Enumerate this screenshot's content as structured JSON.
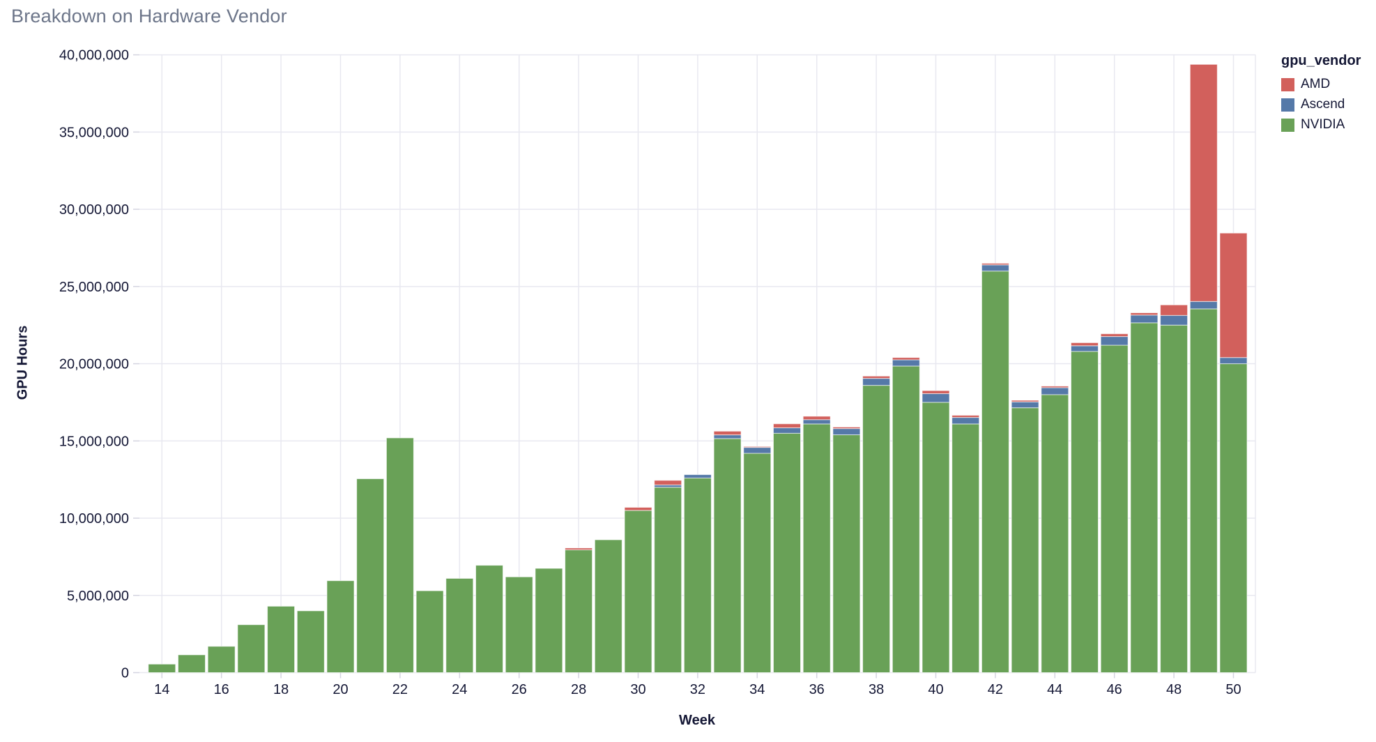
{
  "page": {
    "background": "#ffffff",
    "title": "Breakdown on Hardware Vendor",
    "title_color": "#6c7589"
  },
  "chart_data": {
    "type": "bar",
    "stacked": true,
    "title": "Breakdown on Hardware Vendor",
    "xlabel": "Week",
    "ylabel": "GPU Hours",
    "x": [
      14,
      15,
      16,
      17,
      18,
      19,
      20,
      21,
      22,
      23,
      24,
      25,
      26,
      27,
      28,
      29,
      30,
      31,
      32,
      33,
      34,
      35,
      36,
      37,
      38,
      39,
      40,
      41,
      42,
      43,
      44,
      45,
      46,
      47,
      48,
      49,
      50
    ],
    "series": [
      {
        "name": "NVIDIA",
        "color": "#69a157",
        "values": [
          550000,
          1150000,
          1700000,
          3100000,
          4300000,
          4000000,
          5950000,
          12550000,
          15200000,
          5300000,
          6100000,
          6950000,
          6200000,
          6750000,
          7950000,
          8600000,
          10500000,
          12000000,
          12600000,
          15150000,
          14200000,
          15500000,
          16100000,
          15400000,
          18600000,
          19850000,
          17500000,
          16100000,
          26000000,
          17150000,
          18000000,
          20800000,
          21200000,
          22650000,
          22500000,
          23550000,
          20000000
        ]
      },
      {
        "name": "Ascend",
        "color": "#5579a8",
        "values": [
          0,
          0,
          0,
          0,
          0,
          0,
          0,
          0,
          0,
          0,
          0,
          0,
          0,
          0,
          0,
          0,
          0,
          150000,
          220000,
          240000,
          380000,
          350000,
          280000,
          400000,
          450000,
          400000,
          560000,
          420000,
          400000,
          380000,
          450000,
          360000,
          560000,
          500000,
          630000,
          480000,
          400000
        ]
      },
      {
        "name": "AMD",
        "color": "#d2605c",
        "values": [
          0,
          0,
          0,
          0,
          0,
          0,
          0,
          0,
          0,
          0,
          0,
          0,
          0,
          0,
          120000,
          0,
          200000,
          300000,
          0,
          240000,
          60000,
          260000,
          220000,
          100000,
          150000,
          150000,
          200000,
          140000,
          100000,
          100000,
          100000,
          200000,
          180000,
          150000,
          680000,
          15350000,
          8060000
        ]
      }
    ],
    "stack_order_bottom_to_top": [
      "NVIDIA",
      "Ascend",
      "AMD"
    ],
    "ylim": [
      0,
      40000000
    ],
    "grid": true,
    "y_ticks": {
      "values": [
        0,
        5000000,
        10000000,
        15000000,
        20000000,
        25000000,
        30000000,
        35000000,
        40000000
      ],
      "labels": [
        "0",
        "5,000,000",
        "10,000,000",
        "15,000,000",
        "20,000,000",
        "25,000,000",
        "30,000,000",
        "35,000,000",
        "40,000,000"
      ]
    },
    "x_ticks": {
      "values": [
        14,
        16,
        18,
        20,
        22,
        24,
        26,
        28,
        30,
        32,
        34,
        36,
        38,
        40,
        42,
        44,
        46,
        48,
        50
      ],
      "labels": [
        "14",
        "16",
        "18",
        "20",
        "22",
        "24",
        "26",
        "28",
        "30",
        "32",
        "34",
        "36",
        "38",
        "40",
        "42",
        "44",
        "46",
        "48",
        "50"
      ]
    },
    "legend": {
      "title": "gpu_vendor",
      "position": "right",
      "items": [
        {
          "label": "AMD",
          "color": "#d2605c"
        },
        {
          "label": "Ascend",
          "color": "#5579a8"
        },
        {
          "label": "NVIDIA",
          "color": "#69a157"
        }
      ]
    },
    "style": {
      "grid_color": "#e8e8f0",
      "tick_color": "#d4d4e0",
      "axis_text_color": "#141735",
      "bar_stroke": "rgba(255,255,255,0.65)"
    }
  }
}
